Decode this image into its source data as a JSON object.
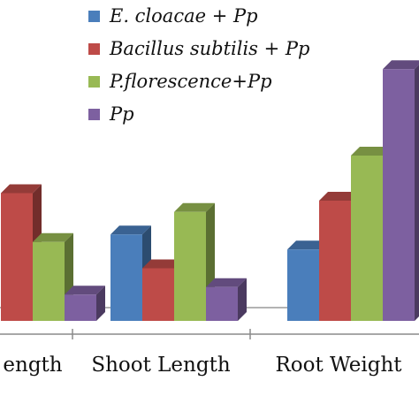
{
  "chart_data": {
    "type": "bar",
    "style": "3d-clustered",
    "categories": [
      "Root Length",
      "Shoot Length",
      "Root Weight"
    ],
    "visible_category_labels": [
      "ength",
      "Shoot Length",
      "Root Weight"
    ],
    "series": [
      {
        "name": "E. cloacae + Pp",
        "color": "#4a7ebb",
        "values": [
          null,
          2.3,
          1.9
        ]
      },
      {
        "name": "Bacillus subtilis + Pp",
        "color": "#be4b48",
        "values": [
          3.4,
          1.4,
          3.2
        ]
      },
      {
        "name": "P.florescence+Pp",
        "color": "#98b954",
        "values": [
          2.1,
          2.9,
          4.4
        ]
      },
      {
        "name": "Pp",
        "color": "#7d60a0",
        "values": [
          0.7,
          0.9,
          6.7
        ]
      }
    ],
    "ylim": [
      0,
      7
    ],
    "grid": false,
    "legend_position": "top"
  }
}
